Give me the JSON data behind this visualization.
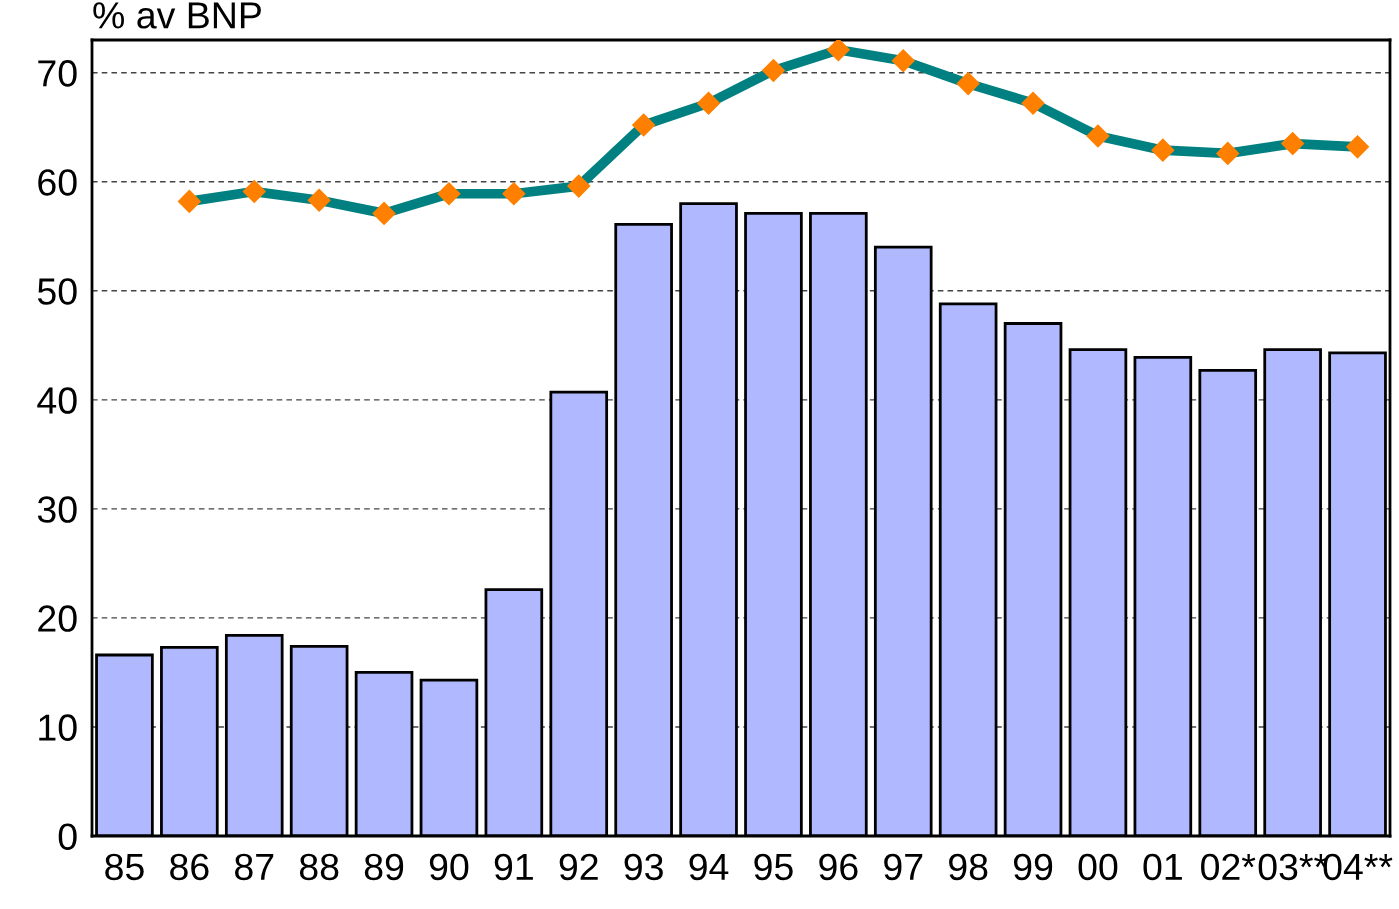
{
  "chart_data": {
    "type": "bar",
    "ylabel": "% av BNP",
    "categories": [
      "85",
      "86",
      "87",
      "88",
      "89",
      "90",
      "91",
      "92",
      "93",
      "94",
      "95",
      "96",
      "97",
      "98",
      "99",
      "00",
      "01",
      "02*",
      "03**",
      "04**"
    ],
    "series": [
      {
        "color": "#b0b8ff",
        "values": [
          16.6,
          17.3,
          18.4,
          17.4,
          15.0,
          14.3,
          22.6,
          40.7,
          56.1,
          58.0,
          57.1,
          57.1,
          54.0,
          48.8,
          47.0,
          44.6,
          43.9,
          42.7,
          44.6,
          44.3
        ]
      },
      {
        "type": "line",
        "color": "#008080",
        "colors": [
          "#ff8000",
          "#ff8000",
          "#ff8000",
          "#ff8000",
          "#ff8000",
          "#ff8000",
          "#ff8000",
          "#ff8000",
          "#ff8000",
          "#ff8000",
          "#ff8000",
          "#ff8000",
          "#ff8000",
          "#ff8000",
          "#ff8000",
          "#ff8000",
          "#ff8000",
          "#ff8000",
          "#ff8000",
          "#ff8000"
        ],
        "marker": "diamond",
        "values": [
          null,
          58.2,
          59.1,
          58.3,
          57.1,
          58.9,
          58.9,
          59.6,
          65.2,
          67.2,
          70.2,
          72.1,
          71.1,
          69.0,
          67.2,
          64.2,
          62.9,
          62.6,
          63.5,
          63.2
        ]
      }
    ],
    "ylim": [
      0,
      73
    ],
    "yticks": [
      0,
      10,
      20,
      30,
      40,
      50,
      60,
      70
    ],
    "grid": "y",
    "legend": false
  }
}
